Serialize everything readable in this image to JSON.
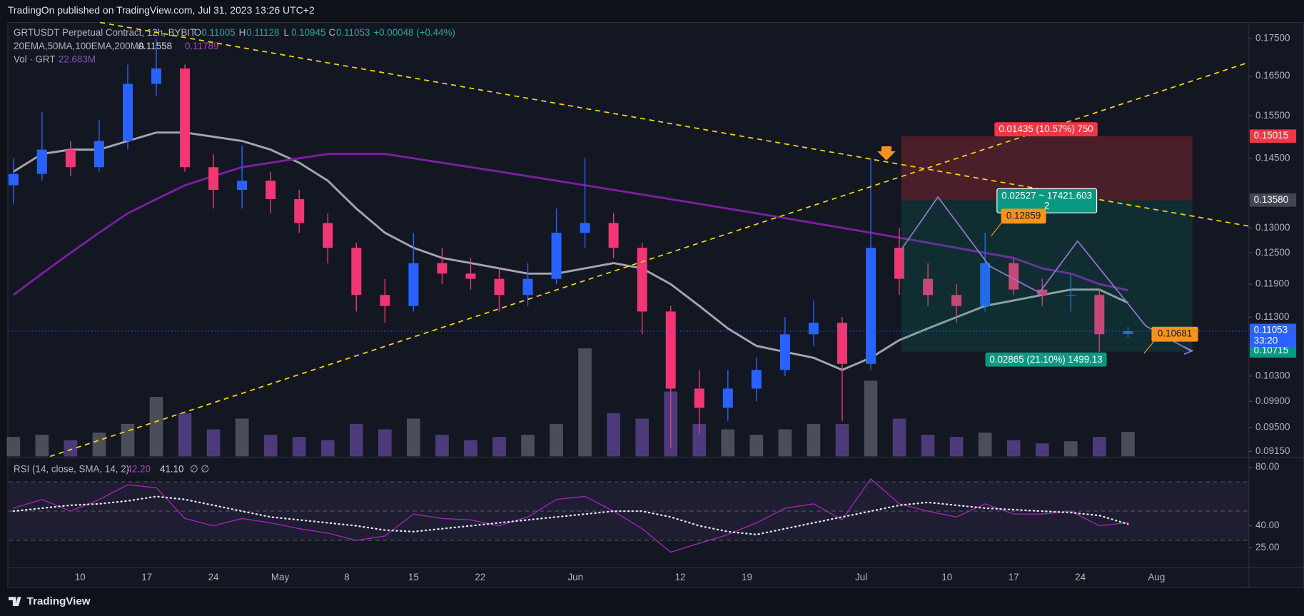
{
  "header": "TradingOn published on TradingView.com, Jul 31, 2023 13:26 UTC+2",
  "footer": "TradingView",
  "chart_data": [
    {
      "type": "candlestick",
      "title": "GRTUSDT Perpetual Contract, 12h, BYBIT",
      "ohlc_legend": [
        {
          "key": "O",
          "value": 0.11005
        },
        {
          "key": "H",
          "value": 0.11128
        },
        {
          "key": "L",
          "value": 0.10945
        },
        {
          "key": "C",
          "value": 0.11053
        }
      ],
      "change": {
        "value": 0.00048,
        "label": "+0.00048 (+0.44%)"
      },
      "x": [
        "2023-04-03",
        "2023-04-06",
        "2023-04-09",
        "2023-04-12",
        "2023-04-15",
        "2023-04-18",
        "2023-04-21",
        "2023-04-24",
        "2023-04-27",
        "2023-04-30",
        "2023-05-03",
        "2023-05-06",
        "2023-05-09",
        "2023-05-12",
        "2023-05-15",
        "2023-05-18",
        "2023-05-21",
        "2023-05-24",
        "2023-05-27",
        "2023-05-30",
        "2023-06-02",
        "2023-06-05",
        "2023-06-08",
        "2023-06-11",
        "2023-06-14",
        "2023-06-17",
        "2023-06-20",
        "2023-06-23",
        "2023-06-26",
        "2023-06-29",
        "2023-07-02",
        "2023-07-05",
        "2023-07-08",
        "2023-07-11",
        "2023-07-14",
        "2023-07-17",
        "2023-07-20",
        "2023-07-23",
        "2023-07-26",
        "2023-07-29"
      ],
      "open": [
        0.139,
        0.1415,
        0.147,
        0.143,
        0.149,
        0.163,
        0.167,
        0.143,
        0.138,
        0.14,
        0.136,
        0.131,
        0.126,
        0.117,
        0.115,
        0.123,
        0.121,
        0.12,
        0.117,
        0.12,
        0.129,
        0.131,
        0.126,
        0.114,
        0.101,
        0.098,
        0.101,
        0.104,
        0.11,
        0.112,
        0.105,
        0.126,
        0.12,
        0.117,
        0.115,
        0.123,
        0.118,
        0.117,
        0.117,
        0.11005
      ],
      "high": [
        0.145,
        0.156,
        0.149,
        0.154,
        0.168,
        0.175,
        0.168,
        0.146,
        0.148,
        0.142,
        0.138,
        0.133,
        0.127,
        0.12,
        0.129,
        0.126,
        0.124,
        0.122,
        0.123,
        0.134,
        0.145,
        0.133,
        0.127,
        0.115,
        0.104,
        0.104,
        0.106,
        0.113,
        0.116,
        0.113,
        0.145,
        0.13,
        0.123,
        0.119,
        0.129,
        0.124,
        0.12,
        0.121,
        0.118,
        0.11128
      ],
      "low": [
        0.135,
        0.14,
        0.141,
        0.142,
        0.147,
        0.16,
        0.142,
        0.134,
        0.134,
        0.133,
        0.129,
        0.123,
        0.114,
        0.112,
        0.114,
        0.119,
        0.118,
        0.114,
        0.115,
        0.119,
        0.126,
        0.124,
        0.11,
        0.092,
        0.094,
        0.096,
        0.099,
        0.103,
        0.108,
        0.096,
        0.104,
        0.117,
        0.115,
        0.112,
        0.114,
        0.117,
        0.115,
        0.114,
        0.107,
        0.10945
      ],
      "close": [
        0.1415,
        0.147,
        0.143,
        0.149,
        0.163,
        0.167,
        0.143,
        0.138,
        0.14,
        0.136,
        0.131,
        0.126,
        0.117,
        0.115,
        0.123,
        0.121,
        0.12,
        0.117,
        0.12,
        0.129,
        0.131,
        0.126,
        0.114,
        0.101,
        0.098,
        0.101,
        0.104,
        0.11,
        0.112,
        0.105,
        0.126,
        0.12,
        0.117,
        0.115,
        0.123,
        0.118,
        0.117,
        0.117,
        0.11,
        0.11053
      ],
      "up_color": "#2962ff",
      "down_color": "#f23674",
      "volume": {
        "name": "Vol · GRT",
        "up_color": "#787b86",
        "down_color": "#7e57c2",
        "values": [
          18,
          20,
          15,
          22,
          30,
          55,
          40,
          25,
          35,
          20,
          18,
          15,
          30,
          25,
          35,
          20,
          15,
          18,
          20,
          30,
          100,
          40,
          35,
          60,
          30,
          25,
          20,
          25,
          30,
          30,
          70,
          35,
          20,
          18,
          22,
          15,
          12,
          14,
          18,
          22.683
        ],
        "value_labels": [
          null,
          null,
          null,
          null,
          null,
          null,
          null,
          null,
          null,
          null,
          null,
          null,
          null,
          null,
          null,
          null,
          null,
          null,
          null,
          null,
          null,
          null,
          null,
          null,
          null,
          null,
          null,
          null,
          null,
          null,
          null,
          null,
          null,
          null,
          null,
          null,
          null,
          null,
          null,
          "22.683M"
        ]
      },
      "indicators": "20EMA,50MA,100EMA,200MA",
      "ma_lines": [
        {
          "color": "#a3a6af",
          "values": [
            0.142,
            0.146,
            0.147,
            0.147,
            0.149,
            0.151,
            0.151,
            0.15,
            0.149,
            0.147,
            0.144,
            0.14,
            0.134,
            0.129,
            0.126,
            0.124,
            0.123,
            0.122,
            0.121,
            0.121,
            0.122,
            0.123,
            0.122,
            0.119,
            0.115,
            0.111,
            0.108,
            0.107,
            0.106,
            0.104,
            0.106,
            0.109,
            0.111,
            0.113,
            0.115,
            0.116,
            0.117,
            0.118,
            0.118,
            0.11558
          ]
        },
        {
          "color": "#7b1fa2",
          "values": [
            0.117,
            0.121,
            0.125,
            0.129,
            0.133,
            0.136,
            0.139,
            0.141,
            0.143,
            0.144,
            0.145,
            0.146,
            0.146,
            0.146,
            0.145,
            0.144,
            0.143,
            0.142,
            0.141,
            0.14,
            0.139,
            0.138,
            0.137,
            0.136,
            0.135,
            0.134,
            0.133,
            0.132,
            0.131,
            0.13,
            0.129,
            0.128,
            0.127,
            0.126,
            0.125,
            0.124,
            0.122,
            0.121,
            0.119,
            0.11789
          ]
        }
      ],
      "log_scale": true,
      "grid": false,
      "ylim": [
        0.0908,
        0.1795
      ],
      "yticks": [
        {
          "value": 0.175,
          "label": "0.17500"
        },
        {
          "value": 0.165,
          "label": "0.16500"
        },
        {
          "value": 0.155,
          "label": "0.15500"
        },
        {
          "value": 0.145,
          "label": "0.14500"
        },
        {
          "value": 0.13,
          "label": "0.13000"
        },
        {
          "value": 0.125,
          "label": "0.12500"
        },
        {
          "value": 0.119,
          "label": "0.11900"
        },
        {
          "value": 0.113,
          "label": "0.11300"
        },
        {
          "value": 0.103,
          "label": "0.10300"
        },
        {
          "value": 0.099,
          "label": "0.09900"
        },
        {
          "value": 0.095,
          "label": "0.09500"
        },
        {
          "value": 0.0915,
          "label": "0.09150"
        }
      ],
      "xticks": [
        {
          "value": "2023-04-10",
          "label": "10"
        },
        {
          "value": "2023-04-17",
          "label": "17"
        },
        {
          "value": "2023-04-24",
          "label": "24"
        },
        {
          "value": "2023-05-01",
          "label": "May"
        },
        {
          "value": "2023-05-08",
          "label": "8"
        },
        {
          "value": "2023-05-15",
          "label": "15"
        },
        {
          "value": "2023-05-22",
          "label": "22"
        },
        {
          "value": "2023-06-01",
          "label": "Jun"
        },
        {
          "value": "2023-06-12",
          "label": "12"
        },
        {
          "value": "2023-06-19",
          "label": "19"
        },
        {
          "value": "2023-07-01",
          "label": "Jul"
        },
        {
          "value": "2023-07-10",
          "label": "10"
        },
        {
          "value": "2023-07-17",
          "label": "17"
        },
        {
          "value": "2023-07-24",
          "label": "24"
        },
        {
          "value": "2023-08-01",
          "label": "Aug"
        }
      ],
      "axis_labels": [
        {
          "value": 0.15015,
          "label": "0.15015",
          "color": "#f23645"
        },
        {
          "value": 0.1358,
          "label": "0.13580",
          "color": "#434651"
        },
        {
          "value": 0.10715,
          "label": "0.10715",
          "color": "#089981"
        }
      ],
      "countdown": "33:20",
      "annotations": {
        "upper": "0.01435 (10.57%) 750",
        "middle": "0.02527 ~ 17421.603",
        "middle_2": "2",
        "lower": "0.02865 (21.10%) 1499.13",
        "point_a": "0.12859",
        "point_b": "0.10681"
      }
    },
    {
      "type": "line",
      "title": "RSI (14, close, SMA, 14, 2)",
      "extra": "∅ ∅",
      "x": [
        "2023-04-03",
        "2023-04-06",
        "2023-04-09",
        "2023-04-12",
        "2023-04-15",
        "2023-04-18",
        "2023-04-21",
        "2023-04-24",
        "2023-04-27",
        "2023-04-30",
        "2023-05-03",
        "2023-05-06",
        "2023-05-09",
        "2023-05-12",
        "2023-05-15",
        "2023-05-18",
        "2023-05-21",
        "2023-05-24",
        "2023-05-27",
        "2023-05-30",
        "2023-06-02",
        "2023-06-05",
        "2023-06-08",
        "2023-06-11",
        "2023-06-14",
        "2023-06-17",
        "2023-06-20",
        "2023-06-23",
        "2023-06-26",
        "2023-06-29",
        "2023-07-02",
        "2023-07-05",
        "2023-07-08",
        "2023-07-11",
        "2023-07-14",
        "2023-07-17",
        "2023-07-20",
        "2023-07-23",
        "2023-07-26",
        "2023-07-29"
      ],
      "series": [
        {
          "color": "#9c27b0",
          "dash": false,
          "values": [
            52,
            58,
            50,
            58,
            68,
            66,
            45,
            40,
            45,
            42,
            38,
            35,
            30,
            33,
            48,
            45,
            44,
            40,
            46,
            58,
            60,
            50,
            38,
            22,
            28,
            34,
            42,
            52,
            55,
            44,
            72,
            55,
            50,
            46,
            55,
            48,
            48,
            50,
            40,
            42.2
          ],
          "value_labels": [
            null,
            null,
            null,
            null,
            null,
            null,
            null,
            null,
            null,
            null,
            null,
            null,
            null,
            null,
            null,
            null,
            null,
            null,
            null,
            null,
            null,
            null,
            null,
            null,
            null,
            null,
            null,
            null,
            null,
            null,
            null,
            null,
            null,
            null,
            null,
            null,
            null,
            null,
            null,
            "42.20"
          ]
        },
        {
          "color": "#e0e3eb",
          "dash": true,
          "values": [
            50,
            52,
            54,
            55,
            57,
            60,
            58,
            54,
            50,
            46,
            44,
            42,
            40,
            37,
            36,
            38,
            40,
            42,
            44,
            46,
            48,
            50,
            50,
            46,
            40,
            36,
            34,
            38,
            42,
            46,
            50,
            54,
            56,
            54,
            52,
            51,
            50,
            49,
            47,
            41.1
          ],
          "value_labels": [
            null,
            null,
            null,
            null,
            null,
            null,
            null,
            null,
            null,
            null,
            null,
            null,
            null,
            null,
            null,
            null,
            null,
            null,
            null,
            null,
            null,
            null,
            null,
            null,
            null,
            null,
            null,
            null,
            null,
            null,
            null,
            null,
            null,
            null,
            null,
            null,
            null,
            null,
            null,
            "41.10"
          ]
        }
      ],
      "bands": [
        70,
        50,
        30
      ],
      "ylim": [
        13,
        85.7
      ],
      "yticks": [
        {
          "value": 80,
          "label": "80.00"
        },
        {
          "value": 40,
          "label": "40.00"
        },
        {
          "value": 25,
          "label": "25.00"
        }
      ]
    }
  ]
}
